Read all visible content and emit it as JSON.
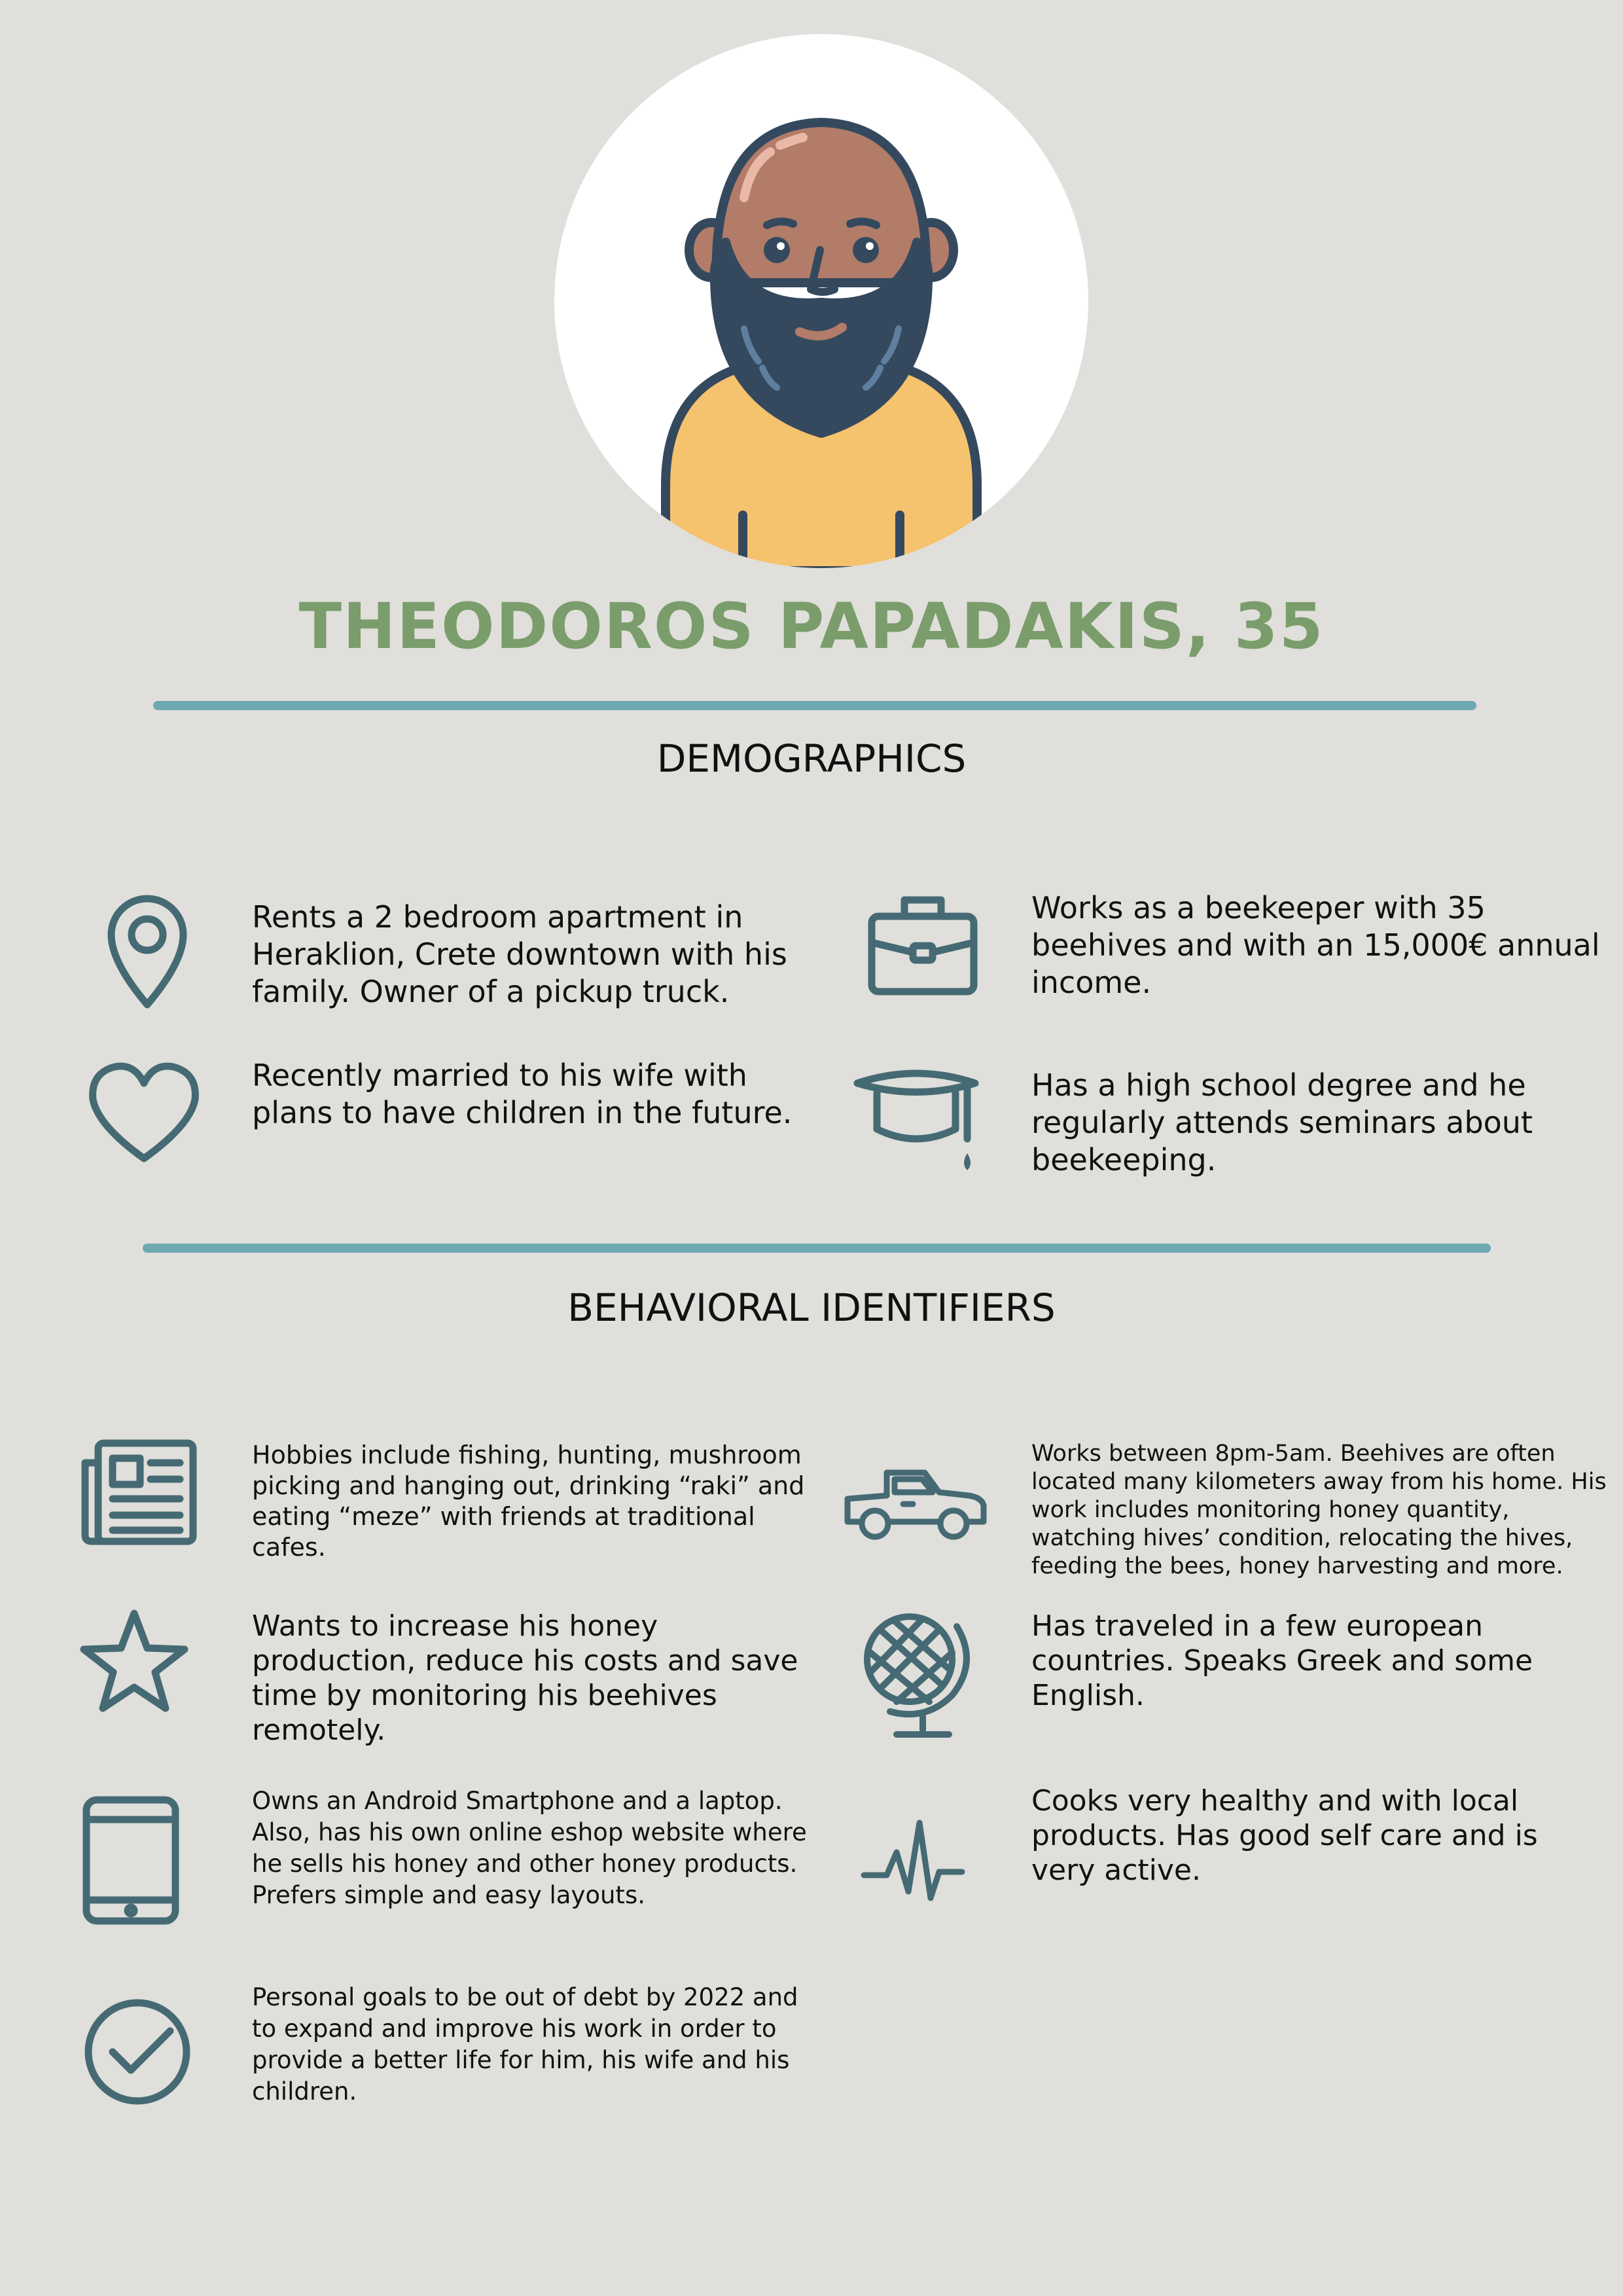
{
  "persona": {
    "name_title": "THEODOROS PAPADAKIS, 35"
  },
  "demographics": {
    "heading": "DEMOGRAPHICS",
    "items": [
      {
        "icon": "location-pin-icon",
        "text": "Rents a 2 bedroom apartment in Heraklion, Crete downtown with his family. Owner of a pickup truck."
      },
      {
        "icon": "briefcase-icon",
        "text": "Works as a beekeeper with 35 beehives and with an 15,000€ annual income."
      },
      {
        "icon": "heart-icon",
        "text": "Recently married to his wife with plans to have children in the future."
      },
      {
        "icon": "graduation-cap-icon",
        "text": "Has a high school degree and he regularly attends seminars about beekeeping."
      }
    ]
  },
  "behavioral": {
    "heading": "BEHAVIORAL IDENTIFIERS",
    "items": [
      {
        "icon": "newspaper-icon",
        "text": "Hobbies include fishing, hunting, mushroom picking and hanging out, drinking “raki” and eating “meze” with friends at traditional cafes."
      },
      {
        "icon": "pickup-truck-icon",
        "text": "Works between 8pm-5am. Beehives are often located many kilometers away from his home. His work includes monitoring honey quantity, watching hives’ condition, relocating the hives, feeding the bees, honey harvesting and more."
      },
      {
        "icon": "star-icon",
        "text": "Wants to increase his honey production, reduce his costs and save time by monitoring his beehives remotely."
      },
      {
        "icon": "globe-icon",
        "text": "Has traveled in a few european countries. Speaks Greek and some English."
      },
      {
        "icon": "tablet-icon",
        "text": "Owns an Android Smartphone and a laptop. Also, has his own online eshop website where he sells his honey and other honey products. Prefers simple and easy layouts."
      },
      {
        "icon": "heartbeat-icon",
        "text": "Cooks very healthy and with local products. Has good self care and is very active."
      },
      {
        "icon": "check-circle-icon",
        "text": "Personal goals to be out of debt by 2022 and to expand and improve his work in order to provide a better life for him, his wife and his children."
      }
    ]
  },
  "colors": {
    "background": "#e0dfdb",
    "title_green": "#7a9d6b",
    "rule_teal": "#6ea9b2",
    "icon_slate": "#456a73",
    "skin": "#b27c69",
    "beard": "#34495e",
    "shirt": "#f5c26d"
  }
}
